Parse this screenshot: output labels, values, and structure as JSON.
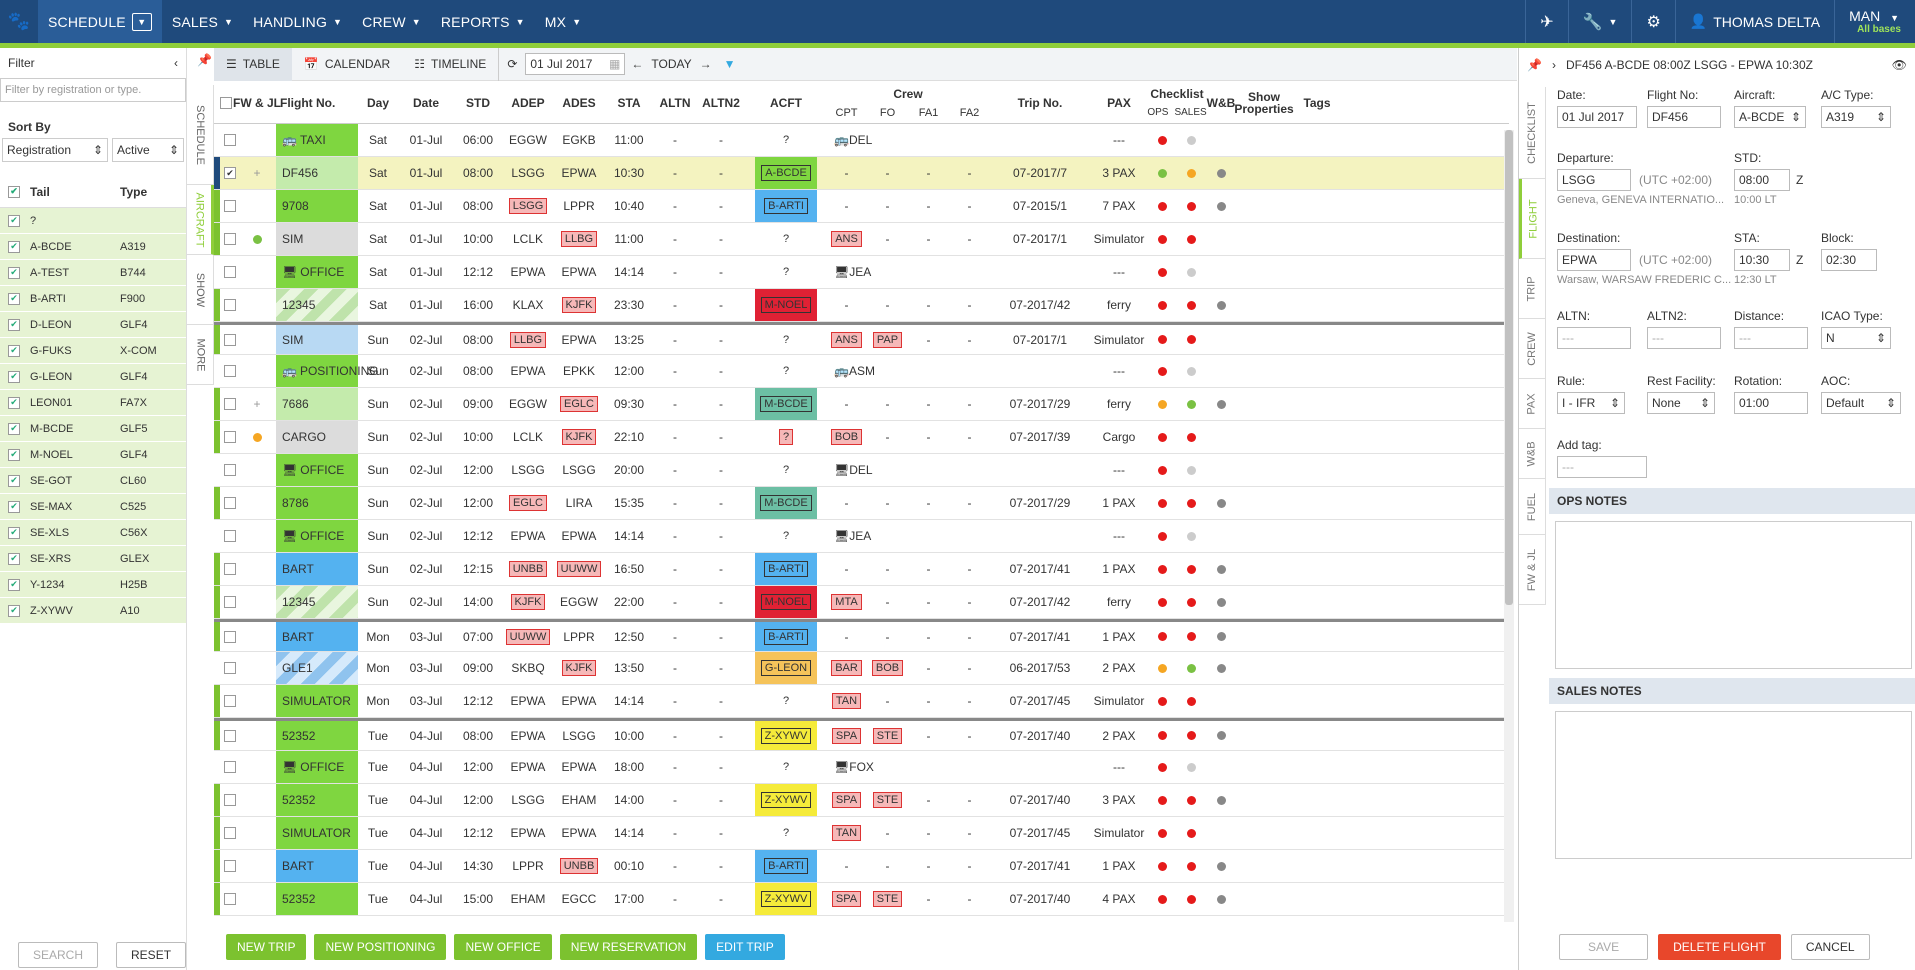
{
  "nav": {
    "schedule": "SCHEDULE",
    "sales": "SALES",
    "handling": "HANDLING",
    "crew": "CREW",
    "reports": "REPORTS",
    "mx": "MX",
    "user": "THOMAS DELTA",
    "base": "MAN",
    "base_sub": "All bases"
  },
  "filter": {
    "title": "Filter",
    "placeholder": "Filter by registration or type.",
    "sort_by": "Sort By",
    "sort_field": "Registration",
    "sort_status": "Active",
    "col_tail": "Tail",
    "col_type": "Type",
    "search": "SEARCH",
    "reset": "RESET",
    "tails": [
      {
        "tail": "?",
        "type": ""
      },
      {
        "tail": "A-BCDE",
        "type": "A319"
      },
      {
        "tail": "A-TEST",
        "type": "B744"
      },
      {
        "tail": "B-ARTI",
        "type": "F900"
      },
      {
        "tail": "D-LEON",
        "type": "GLF4"
      },
      {
        "tail": "G-FUKS",
        "type": "X-COM"
      },
      {
        "tail": "G-LEON",
        "type": "GLF4"
      },
      {
        "tail": "LEON01",
        "type": "FA7X"
      },
      {
        "tail": "M-BCDE",
        "type": "GLF5"
      },
      {
        "tail": "M-NOEL",
        "type": "GLF4"
      },
      {
        "tail": "SE-GOT",
        "type": "CL60"
      },
      {
        "tail": "SE-MAX",
        "type": "C525"
      },
      {
        "tail": "SE-XLS",
        "type": "C56X"
      },
      {
        "tail": "SE-XRS",
        "type": "GLEX"
      },
      {
        "tail": "Y-1234",
        "type": "H25B"
      },
      {
        "tail": "Z-XYWV",
        "type": "A10"
      }
    ]
  },
  "left_tabs": [
    "SCHEDULE",
    "AIRCRAFT",
    "SHOW",
    "MORE"
  ],
  "toolbar": {
    "table": "TABLE",
    "calendar": "CALENDAR",
    "timeline": "TIMELINE",
    "date": "01 Jul 2017",
    "today": "TODAY"
  },
  "cols": {
    "fwjl": "FW & JL",
    "flight": "Flight No.",
    "day": "Day",
    "date": "Date",
    "std": "STD",
    "adep": "ADEP",
    "ades": "ADES",
    "sta": "STA",
    "altn": "ALTN",
    "altn2": "ALTN2",
    "acft": "ACFT",
    "crew": "Crew",
    "cpt": "CPT",
    "fo": "FO",
    "fa1": "FA1",
    "fa2": "FA2",
    "trip": "Trip No.",
    "pax": "PAX",
    "checklist": "Checklist",
    "ops": "OPS",
    "sales": "SALES",
    "wb": "W&B",
    "show_props": "Show Properties",
    "tags": "Tags"
  },
  "rows": [
    {
      "fl": "TAXI",
      "icon": "bus",
      "fc": "green",
      "ls": "",
      "fw": "",
      "day": "Sat",
      "date": "01-Jul",
      "std": "06:00",
      "adep": "EGGW",
      "ades": "EGKB",
      "adept": 0,
      "adest": 0,
      "sta": "11:00",
      "altn": "-",
      "altn2": "-",
      "acft": "?",
      "ac": "",
      "cpt": "DEL",
      "cpti": "bus",
      "fo": "",
      "fa1": "",
      "fa2": "",
      "trip": "",
      "pax": "---",
      "ops": "red",
      "sales": "lgray",
      "wb": "",
      "sep": 0,
      "chk": 0
    },
    {
      "fl": "DF456",
      "icon": "",
      "fc": "lgreen",
      "ls": "blue",
      "fw": "+",
      "day": "Sat",
      "date": "01-Jul",
      "std": "08:00",
      "adep": "LSGG",
      "ades": "EPWA",
      "adept": 0,
      "adest": 0,
      "sta": "10:30",
      "altn": "-",
      "altn2": "-",
      "acft": "A-BCDE",
      "ac": "green",
      "cpt": "-",
      "fo": "-",
      "fa1": "-",
      "fa2": "-",
      "trip": "07-2017/7",
      "pax": "3 PAX",
      "ops": "green",
      "sales": "orange",
      "wb": "dgray",
      "sep": 0,
      "chk": 1,
      "selected": 1
    },
    {
      "fl": "9708",
      "icon": "",
      "fc": "green",
      "ls": "green",
      "fw": "",
      "day": "Sat",
      "date": "01-Jul",
      "std": "08:00",
      "adep": "LSGG",
      "ades": "LPPR",
      "adept": 1,
      "adest": 0,
      "sta": "10:40",
      "altn": "-",
      "altn2": "-",
      "acft": "B-ARTI",
      "ac": "blue",
      "cpt": "-",
      "fo": "-",
      "fa1": "-",
      "fa2": "-",
      "trip": "07-2015/1",
      "pax": "7 PAX",
      "ops": "red",
      "sales": "red",
      "wb": "dgray",
      "sep": 0,
      "chk": 0
    },
    {
      "fl": "SIM",
      "icon": "",
      "fc": "gray",
      "ls": "green",
      "fw": "gdot",
      "day": "Sat",
      "date": "01-Jul",
      "std": "10:00",
      "adep": "LCLK",
      "ades": "LLBG",
      "adept": 0,
      "adest": 1,
      "sta": "11:00",
      "altn": "-",
      "altn2": "-",
      "acft": "?",
      "ac": "",
      "cpt": "ANS",
      "cptt": 1,
      "fo": "-",
      "fa1": "-",
      "fa2": "-",
      "trip": "07-2017/1",
      "pax": "Simulator",
      "ops": "red",
      "sales": "red",
      "wb": "",
      "sep": 0,
      "chk": 0
    },
    {
      "fl": "OFFICE",
      "icon": "pc",
      "fc": "green",
      "ls": "",
      "fw": "",
      "day": "Sat",
      "date": "01-Jul",
      "std": "12:12",
      "adep": "EPWA",
      "ades": "EPWA",
      "adept": 0,
      "adest": 0,
      "sta": "14:14",
      "altn": "-",
      "altn2": "-",
      "acft": "?",
      "ac": "",
      "cpt": "JEA",
      "cpti": "pc",
      "fo": "",
      "fa1": "",
      "fa2": "",
      "trip": "",
      "pax": "---",
      "ops": "red",
      "sales": "lgray",
      "wb": "",
      "sep": 0,
      "chk": 0
    },
    {
      "fl": "12345",
      "icon": "",
      "fc": "stripe",
      "ls": "green",
      "fw": "",
      "day": "Sat",
      "date": "01-Jul",
      "std": "16:00",
      "adep": "KLAX",
      "ades": "KJFK",
      "adept": 0,
      "adest": 1,
      "sta": "23:30",
      "altn": "-",
      "altn2": "-",
      "acft": "M-NOEL",
      "ac": "red",
      "cpt": "-",
      "fo": "-",
      "fa1": "-",
      "fa2": "-",
      "trip": "07-2017/42",
      "pax": "ferry",
      "ops": "red",
      "sales": "red",
      "wb": "dgray",
      "sep": 0,
      "chk": 0
    },
    {
      "fl": "SIM",
      "icon": "",
      "fc": "lblue",
      "ls": "green",
      "fw": "",
      "day": "Sun",
      "date": "02-Jul",
      "std": "08:00",
      "adep": "LLBG",
      "ades": "EPWA",
      "adept": 1,
      "adest": 0,
      "sta": "13:25",
      "altn": "-",
      "altn2": "-",
      "acft": "?",
      "ac": "",
      "cpt": "ANS",
      "cptt": 1,
      "fo": "PAP",
      "fot": 1,
      "fa1": "-",
      "fa2": "-",
      "trip": "07-2017/1",
      "pax": "Simulator",
      "ops": "red",
      "sales": "red",
      "wb": "",
      "sep": 1,
      "chk": 0
    },
    {
      "fl": "POSITIONING",
      "icon": "bus",
      "fc": "green",
      "ls": "",
      "fw": "",
      "day": "Sun",
      "date": "02-Jul",
      "std": "08:00",
      "adep": "EPWA",
      "ades": "EPKK",
      "adept": 0,
      "adest": 0,
      "sta": "12:00",
      "altn": "-",
      "altn2": "-",
      "acft": "?",
      "ac": "",
      "cpt": "ASM",
      "cpti": "bus",
      "fo": "",
      "fa1": "",
      "fa2": "",
      "trip": "",
      "pax": "---",
      "ops": "red",
      "sales": "lgray",
      "wb": "",
      "sep": 0,
      "chk": 0
    },
    {
      "fl": "7686",
      "icon": "",
      "fc": "lgreen",
      "ls": "green",
      "fw": "+",
      "day": "Sun",
      "date": "02-Jul",
      "std": "09:00",
      "adep": "EGGW",
      "ades": "EGLC",
      "adept": 0,
      "adest": 1,
      "sta": "09:30",
      "altn": "-",
      "altn2": "-",
      "acft": "M-BCDE",
      "ac": "teal",
      "cpt": "-",
      "fo": "-",
      "fa1": "-",
      "fa2": "-",
      "trip": "07-2017/29",
      "pax": "ferry",
      "ops": "orange",
      "sales": "green",
      "wb": "dgray",
      "sep": 0,
      "chk": 0
    },
    {
      "fl": "CARGO",
      "icon": "",
      "fc": "gray",
      "ls": "green",
      "fw": "odot",
      "day": "Sun",
      "date": "02-Jul",
      "std": "10:00",
      "adep": "LCLK",
      "ades": "KJFK",
      "adept": 0,
      "adest": 1,
      "sta": "22:10",
      "altn": "-",
      "altn2": "-",
      "acft": "?",
      "ac": "tag",
      "cpt": "BOB",
      "cptt": 1,
      "fo": "-",
      "fa1": "-",
      "fa2": "-",
      "trip": "07-2017/39",
      "pax": "Cargo",
      "ops": "red",
      "sales": "red",
      "wb": "",
      "sep": 0,
      "chk": 0
    },
    {
      "fl": "OFFICE",
      "icon": "pc",
      "fc": "green",
      "ls": "",
      "fw": "",
      "day": "Sun",
      "date": "02-Jul",
      "std": "12:00",
      "adep": "LSGG",
      "ades": "LSGG",
      "adept": 0,
      "adest": 0,
      "sta": "20:00",
      "altn": "-",
      "altn2": "-",
      "acft": "?",
      "ac": "",
      "cpt": "DEL",
      "cpti": "pc",
      "fo": "",
      "fa1": "",
      "fa2": "",
      "trip": "",
      "pax": "---",
      "ops": "red",
      "sales": "lgray",
      "wb": "",
      "sep": 0,
      "chk": 0
    },
    {
      "fl": "8786",
      "icon": "",
      "fc": "green",
      "ls": "green",
      "fw": "",
      "day": "Sun",
      "date": "02-Jul",
      "std": "12:00",
      "adep": "EGLC",
      "ades": "LIRA",
      "adept": 1,
      "adest": 0,
      "sta": "15:35",
      "altn": "-",
      "altn2": "-",
      "acft": "M-BCDE",
      "ac": "teal",
      "cpt": "-",
      "fo": "-",
      "fa1": "-",
      "fa2": "-",
      "trip": "07-2017/29",
      "pax": "1 PAX",
      "ops": "red",
      "sales": "red",
      "wb": "dgray",
      "sep": 0,
      "chk": 0
    },
    {
      "fl": "OFFICE",
      "icon": "pc",
      "fc": "green",
      "ls": "",
      "fw": "",
      "day": "Sun",
      "date": "02-Jul",
      "std": "12:12",
      "adep": "EPWA",
      "ades": "EPWA",
      "adept": 0,
      "adest": 0,
      "sta": "14:14",
      "altn": "-",
      "altn2": "-",
      "acft": "?",
      "ac": "",
      "cpt": "JEA",
      "cpti": "pc",
      "fo": "",
      "fa1": "",
      "fa2": "",
      "trip": "",
      "pax": "---",
      "ops": "red",
      "sales": "lgray",
      "wb": "",
      "sep": 0,
      "chk": 0
    },
    {
      "fl": "BART",
      "icon": "",
      "fc": "blue",
      "ls": "green",
      "fw": "",
      "day": "Sun",
      "date": "02-Jul",
      "std": "12:15",
      "adep": "UNBB",
      "ades": "UUWW",
      "adept": 1,
      "adest": 1,
      "sta": "16:50",
      "altn": "-",
      "altn2": "-",
      "acft": "B-ARTI",
      "ac": "blue",
      "cpt": "-",
      "fo": "-",
      "fa1": "-",
      "fa2": "-",
      "trip": "07-2017/41",
      "pax": "1 PAX",
      "ops": "red",
      "sales": "red",
      "wb": "dgray",
      "sep": 0,
      "chk": 0
    },
    {
      "fl": "12345",
      "icon": "",
      "fc": "stripe",
      "ls": "green",
      "fw": "",
      "day": "Sun",
      "date": "02-Jul",
      "std": "14:00",
      "adep": "KJFK",
      "ades": "EGGW",
      "adept": 1,
      "adest": 0,
      "sta": "22:00",
      "altn": "-",
      "altn2": "-",
      "acft": "M-NOEL",
      "ac": "red",
      "cpt": "MTA",
      "cptt": 1,
      "fo": "-",
      "fa1": "-",
      "fa2": "-",
      "trip": "07-2017/42",
      "pax": "ferry",
      "ops": "red",
      "sales": "red",
      "wb": "dgray",
      "sep": 0,
      "chk": 0
    },
    {
      "fl": "BART",
      "icon": "",
      "fc": "blue",
      "ls": "green",
      "fw": "",
      "day": "Mon",
      "date": "03-Jul",
      "std": "07:00",
      "adep": "UUWW",
      "ades": "LPPR",
      "adept": 1,
      "adest": 0,
      "sta": "12:50",
      "altn": "-",
      "altn2": "-",
      "acft": "B-ARTI",
      "ac": "blue",
      "cpt": "-",
      "fo": "-",
      "fa1": "-",
      "fa2": "-",
      "trip": "07-2017/41",
      "pax": "1 PAX",
      "ops": "red",
      "sales": "red",
      "wb": "dgray",
      "sep": 1,
      "chk": 0
    },
    {
      "fl": "GLE1",
      "icon": "",
      "fc": "stripeb",
      "ls": "",
      "fw": "",
      "day": "Mon",
      "date": "03-Jul",
      "std": "09:00",
      "adep": "SKBQ",
      "ades": "KJFK",
      "adept": 0,
      "adest": 1,
      "sta": "13:50",
      "altn": "-",
      "altn2": "-",
      "acft": "G-LEON",
      "ac": "orange",
      "cpt": "BAR",
      "cptt": 1,
      "fo": "BOB",
      "fot": 1,
      "fa1": "-",
      "fa2": "-",
      "trip": "06-2017/53",
      "pax": "2 PAX",
      "ops": "orange",
      "sales": "green",
      "wb": "dgray",
      "sep": 0,
      "chk": 0
    },
    {
      "fl": "SIMULATOR",
      "icon": "",
      "fc": "green",
      "ls": "green",
      "fw": "",
      "day": "Mon",
      "date": "03-Jul",
      "std": "12:12",
      "adep": "EPWA",
      "ades": "EPWA",
      "adept": 0,
      "adest": 0,
      "sta": "14:14",
      "altn": "-",
      "altn2": "-",
      "acft": "?",
      "ac": "",
      "cpt": "TAN",
      "cptt": 1,
      "fo": "-",
      "fa1": "-",
      "fa2": "-",
      "trip": "07-2017/45",
      "pax": "Simulator",
      "ops": "red",
      "sales": "red",
      "wb": "",
      "sep": 0,
      "chk": 0
    },
    {
      "fl": "52352",
      "icon": "",
      "fc": "green",
      "ls": "green",
      "fw": "",
      "day": "Tue",
      "date": "04-Jul",
      "std": "08:00",
      "adep": "EPWA",
      "ades": "LSGG",
      "adept": 0,
      "adest": 0,
      "sta": "10:00",
      "altn": "-",
      "altn2": "-",
      "acft": "Z-XYWV",
      "ac": "yellow",
      "cpt": "SPA",
      "cptt": 1,
      "fo": "STE",
      "fot": 1,
      "fa1": "-",
      "fa2": "-",
      "trip": "07-2017/40",
      "pax": "2 PAX",
      "ops": "red",
      "sales": "red",
      "wb": "dgray",
      "sep": 1,
      "chk": 0
    },
    {
      "fl": "OFFICE",
      "icon": "pc",
      "fc": "green",
      "ls": "",
      "fw": "",
      "day": "Tue",
      "date": "04-Jul",
      "std": "12:00",
      "adep": "EPWA",
      "ades": "EPWA",
      "adept": 0,
      "adest": 0,
      "sta": "18:00",
      "altn": "-",
      "altn2": "-",
      "acft": "?",
      "ac": "",
      "cpt": "FOX",
      "cpti": "pc",
      "fo": "",
      "fa1": "",
      "fa2": "",
      "trip": "",
      "pax": "---",
      "ops": "red",
      "sales": "lgray",
      "wb": "",
      "sep": 0,
      "chk": 0
    },
    {
      "fl": "52352",
      "icon": "",
      "fc": "green",
      "ls": "green",
      "fw": "",
      "day": "Tue",
      "date": "04-Jul",
      "std": "12:00",
      "adep": "LSGG",
      "ades": "EHAM",
      "adept": 0,
      "adest": 0,
      "sta": "14:00",
      "altn": "-",
      "altn2": "-",
      "acft": "Z-XYWV",
      "ac": "yellow",
      "cpt": "SPA",
      "cptt": 1,
      "fo": "STE",
      "fot": 1,
      "fa1": "-",
      "fa2": "-",
      "trip": "07-2017/40",
      "pax": "3 PAX",
      "ops": "red",
      "sales": "red",
      "wb": "dgray",
      "sep": 0,
      "chk": 0
    },
    {
      "fl": "SIMULATOR",
      "icon": "",
      "fc": "green",
      "ls": "green",
      "fw": "",
      "day": "Tue",
      "date": "04-Jul",
      "std": "12:12",
      "adep": "EPWA",
      "ades": "EPWA",
      "adept": 0,
      "adest": 0,
      "sta": "14:14",
      "altn": "-",
      "altn2": "-",
      "acft": "?",
      "ac": "",
      "cpt": "TAN",
      "cptt": 1,
      "fo": "-",
      "fa1": "-",
      "fa2": "-",
      "trip": "07-2017/45",
      "pax": "Simulator",
      "ops": "red",
      "sales": "red",
      "wb": "",
      "sep": 0,
      "chk": 0
    },
    {
      "fl": "BART",
      "icon": "",
      "fc": "blue",
      "ls": "green",
      "fw": "",
      "day": "Tue",
      "date": "04-Jul",
      "std": "14:30",
      "adep": "LPPR",
      "ades": "UNBB",
      "adept": 0,
      "adest": 1,
      "sta": "00:10",
      "altn": "-",
      "altn2": "-",
      "acft": "B-ARTI",
      "ac": "blue",
      "cpt": "-",
      "fo": "-",
      "fa1": "-",
      "fa2": "-",
      "trip": "07-2017/41",
      "pax": "1 PAX",
      "ops": "red",
      "sales": "red",
      "wb": "dgray",
      "sep": 0,
      "chk": 0
    },
    {
      "fl": "52352",
      "icon": "",
      "fc": "green",
      "ls": "green",
      "fw": "",
      "day": "Tue",
      "date": "04-Jul",
      "std": "15:00",
      "adep": "EHAM",
      "ades": "EGCC",
      "adept": 0,
      "adest": 0,
      "sta": "17:00",
      "altn": "-",
      "altn2": "-",
      "acft": "Z-XYWV",
      "ac": "yellow",
      "cpt": "SPA",
      "cptt": 1,
      "fo": "STE",
      "fot": 1,
      "fa1": "-",
      "fa2": "-",
      "trip": "07-2017/40",
      "pax": "4 PAX",
      "ops": "red",
      "sales": "red",
      "wb": "dgray",
      "sep": 0,
      "chk": 0
    }
  ],
  "actions": {
    "new_trip": "NEW TRIP",
    "new_positioning": "NEW POSITIONING",
    "new_office": "NEW OFFICE",
    "new_reservation": "NEW RESERVATION",
    "edit_trip": "EDIT TRIP"
  },
  "right": {
    "title": "DF456 A-BCDE 08:00Z LSGG - EPWA 10:30Z",
    "tabs": [
      "CHECKLIST",
      "FLIGHT",
      "TRIP",
      "CREW",
      "PAX",
      "W&B",
      "FUEL",
      "FW & JL"
    ],
    "date_l": "Date:",
    "date_v": "01 Jul 2017",
    "flno_l": "Flight No:",
    "flno_v": "DF456",
    "ac_l": "Aircraft:",
    "ac_v": "A-BCDE",
    "actype_l": "A/C Type:",
    "actype_v": "A319",
    "dep_l": "Departure:",
    "dep_v": "LSGG",
    "dep_utc": "(UTC +02:00)",
    "dep_sub": "Geneva, GENEVA INTERNATIO...",
    "std_l": "STD:",
    "std_v": "08:00",
    "std_z": "Z",
    "std_lt": "10:00 LT",
    "dest_l": "Destination:",
    "dest_v": "EPWA",
    "dest_utc": "(UTC +02:00)",
    "dest_sub": "Warsaw, WARSAW FREDERIC C...",
    "sta_l": "STA:",
    "sta_v": "10:30",
    "sta_z": "Z",
    "sta_lt": "12:30 LT",
    "block_l": "Block:",
    "block_v": "02:30",
    "altn_l": "ALTN:",
    "altn_v": "---",
    "altn2_l": "ALTN2:",
    "altn2_v": "---",
    "dist_l": "Distance:",
    "dist_v": "---",
    "icao_l": "ICAO Type:",
    "icao_v": "N",
    "rule_l": "Rule:",
    "rule_v": "I - IFR",
    "rest_l": "Rest Facility:",
    "rest_v": "None",
    "rot_l": "Rotation:",
    "rot_v": "01:00",
    "aoc_l": "AOC:",
    "aoc_v": "Default",
    "tag_l": "Add tag:",
    "tag_v": "---",
    "ops_notes": "OPS NOTES",
    "sales_notes": "SALES NOTES",
    "save": "SAVE",
    "delete": "DELETE FLIGHT",
    "cancel": "CANCEL"
  },
  "colors": {
    "nav_bg": "#1f4a7c",
    "accent": "#8fce3a"
  }
}
